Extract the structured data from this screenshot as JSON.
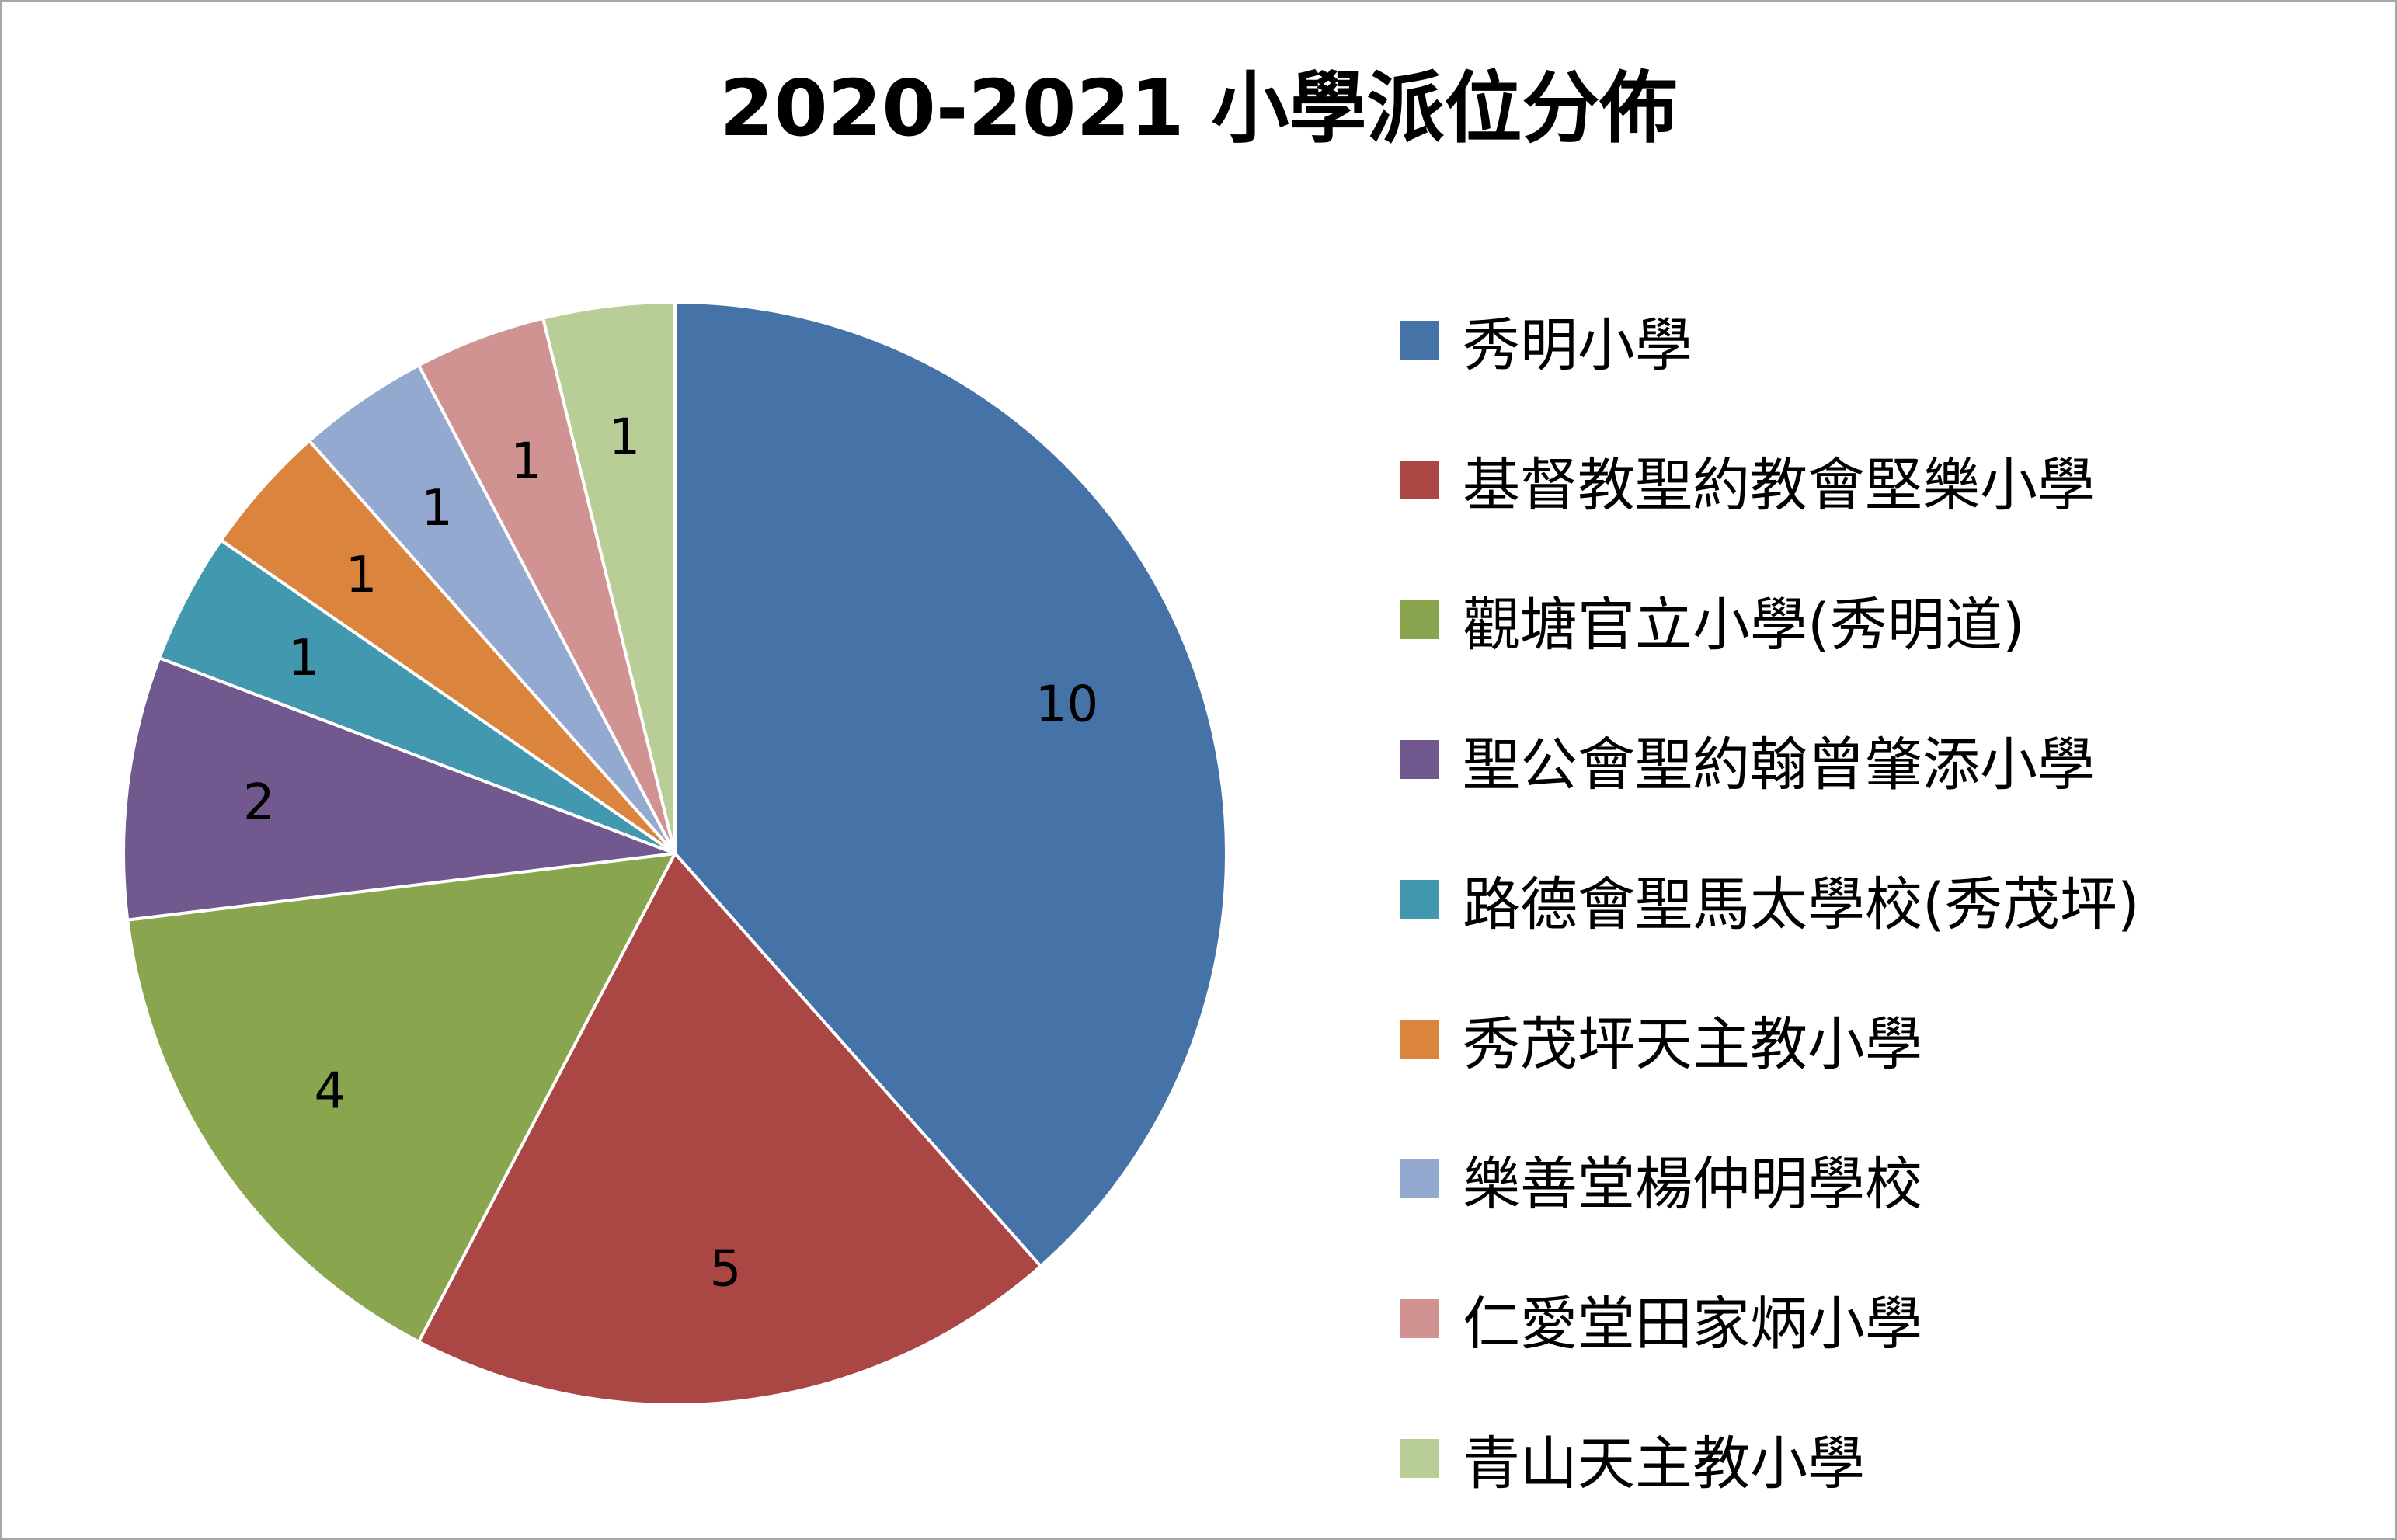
{
  "chart_data": {
    "type": "pie",
    "title": "2020-2021 小學派位分佈",
    "categories": [
      "秀明小學",
      "基督教聖約教會堅樂小學",
      "觀塘官立小學(秀明道)",
      "聖公會聖約翰曾肇添小學",
      "路德會聖馬太學校(秀茂坪)",
      "秀茂坪天主教小學",
      "樂善堂楊仲明學校",
      "仁愛堂田家炳小學",
      "青山天主教小學"
    ],
    "values": [
      10,
      5,
      4,
      2,
      1,
      1,
      1,
      1,
      1
    ],
    "data_labels": [
      "10",
      "5",
      "4",
      "2",
      "1",
      "1",
      "1",
      "1",
      "1"
    ],
    "colors": [
      "#4572a7",
      "#aa4643",
      "#89a54e",
      "#71588f",
      "#4198af",
      "#db843d",
      "#93a9cf",
      "#d19392",
      "#b9cd96"
    ],
    "legend_position": "right",
    "start_angle": "top",
    "direction": "clockwise"
  }
}
